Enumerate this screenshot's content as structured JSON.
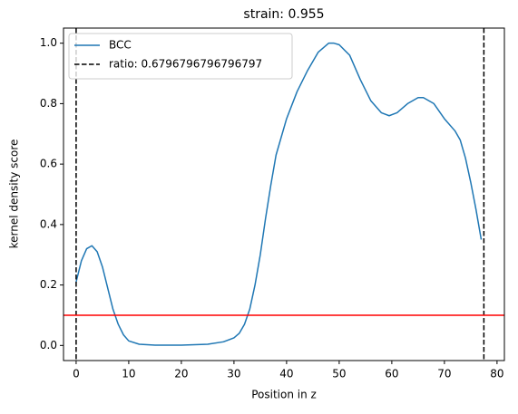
{
  "chart_data": {
    "type": "line",
    "title": "strain: 0.955",
    "xlabel": "Position in z",
    "ylabel": "kernel density score",
    "xlim": [
      -2.4,
      81.4
    ],
    "ylim": [
      -0.05,
      1.05
    ],
    "xticks": [
      0,
      10,
      20,
      30,
      40,
      50,
      60,
      70,
      80
    ],
    "yticks": [
      {
        "value": 0,
        "label": "0.0"
      },
      0.2,
      0.4,
      0.6,
      0.8,
      {
        "value": 1,
        "label": "1.0"
      }
    ],
    "series": [
      {
        "name": "BCC",
        "color": "#1f77b4",
        "x": [
          0,
          1,
          2,
          3,
          4,
          5,
          6,
          7,
          8,
          9,
          10,
          12,
          15,
          20,
          25,
          28,
          30,
          31,
          32,
          33,
          34,
          35,
          36,
          37,
          38,
          40,
          42,
          44,
          46,
          48,
          49,
          50,
          52,
          54,
          56,
          58,
          59.5,
          61,
          63,
          65,
          66,
          68,
          70,
          72,
          73,
          74,
          75,
          76,
          77
        ],
        "values": [
          0.21,
          0.28,
          0.32,
          0.33,
          0.31,
          0.26,
          0.19,
          0.12,
          0.07,
          0.035,
          0.015,
          0.004,
          0.001,
          0.001,
          0.004,
          0.012,
          0.025,
          0.04,
          0.07,
          0.12,
          0.2,
          0.3,
          0.42,
          0.53,
          0.63,
          0.75,
          0.84,
          0.91,
          0.97,
          1.0,
          1.0,
          0.995,
          0.96,
          0.88,
          0.81,
          0.77,
          0.76,
          0.77,
          0.8,
          0.82,
          0.82,
          0.8,
          0.75,
          0.71,
          0.68,
          0.62,
          0.54,
          0.45,
          0.35
        ]
      }
    ],
    "vlines": {
      "name": "ratio: 0.6796796796796797",
      "color": "#000000",
      "x": [
        0,
        77.5
      ]
    },
    "hline": {
      "value": 0.1,
      "color": "#ff0000"
    },
    "legend": "upper left"
  }
}
